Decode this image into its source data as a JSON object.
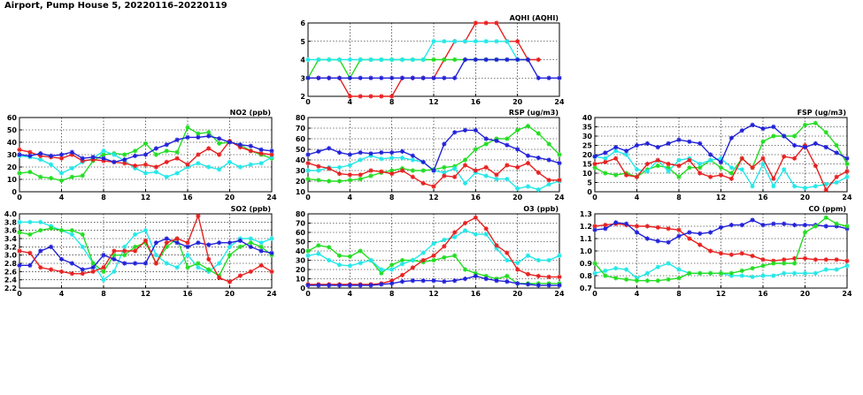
{
  "page_title": "Airport, Pump House 5, 20220116–20220119",
  "colors": {
    "red": "#e82020",
    "green": "#22dd22",
    "blue": "#2222d8",
    "cyan": "#22e8e8"
  },
  "chart_data": [
    {
      "id": "aqhi",
      "type": "line",
      "title": "AQHI (AQHI)",
      "xlim": [
        0,
        24
      ],
      "ylim": [
        2,
        6
      ],
      "xticks": [
        0,
        4,
        8,
        12,
        16,
        20,
        24
      ],
      "yticks": [
        2,
        3,
        4,
        5,
        6
      ],
      "x": [
        0,
        1,
        2,
        3,
        4,
        5,
        6,
        7,
        8,
        9,
        10,
        11,
        12,
        13,
        14,
        15,
        16,
        17,
        18,
        19,
        20,
        21,
        22,
        23,
        24
      ],
      "series": [
        {
          "color": "red",
          "values": [
            3,
            3,
            3,
            3,
            2,
            2,
            2,
            2,
            2,
            3,
            3,
            3,
            3,
            4,
            5,
            5,
            6,
            6,
            6,
            5,
            5,
            4,
            4,
            null,
            null
          ]
        },
        {
          "color": "green",
          "values": [
            3,
            4,
            4,
            4,
            3,
            4,
            4,
            4,
            4,
            4,
            4,
            4,
            4,
            4,
            4,
            4,
            4,
            4,
            4,
            4,
            4,
            4,
            null,
            null,
            null
          ]
        },
        {
          "color": "cyan",
          "values": [
            4,
            4,
            4,
            4,
            4,
            4,
            4,
            4,
            4,
            4,
            4,
            4,
            5,
            5,
            5,
            5,
            5,
            5,
            5,
            5,
            4,
            null,
            null,
            null,
            null
          ]
        },
        {
          "color": "blue",
          "values": [
            3,
            3,
            3,
            3,
            3,
            3,
            3,
            3,
            3,
            3,
            3,
            3,
            3,
            3,
            3,
            4,
            4,
            4,
            4,
            4,
            4,
            4,
            3,
            3,
            3
          ]
        }
      ]
    },
    {
      "id": "no2",
      "type": "line",
      "title": "NO2 (ppb)",
      "xlim": [
        0,
        24
      ],
      "ylim": [
        0,
        60
      ],
      "xticks": [
        0,
        4,
        8,
        12,
        16,
        20,
        24
      ],
      "yticks": [
        0,
        10,
        20,
        30,
        40,
        50,
        60
      ],
      "x": [
        0,
        1,
        2,
        3,
        4,
        5,
        6,
        7,
        8,
        9,
        10,
        11,
        12,
        13,
        14,
        15,
        16,
        17,
        18,
        19,
        20,
        21,
        22,
        23,
        24
      ],
      "series": [
        {
          "color": "green",
          "values": [
            15,
            16,
            12,
            11,
            9,
            12,
            13,
            25,
            30,
            31,
            30,
            33,
            39,
            30,
            33,
            32,
            52,
            47,
            48,
            39,
            40,
            38,
            33,
            30,
            27
          ]
        },
        {
          "color": "cyan",
          "values": [
            29,
            28,
            26,
            22,
            15,
            19,
            24,
            27,
            33,
            30,
            25,
            19,
            15,
            16,
            12,
            15,
            20,
            23,
            20,
            18,
            24,
            20,
            22,
            23,
            28
          ]
        },
        {
          "color": "red",
          "values": [
            34,
            32,
            29,
            28,
            27,
            30,
            25,
            26,
            25,
            24,
            23,
            21,
            22,
            20,
            24,
            27,
            22,
            30,
            35,
            30,
            41,
            36,
            33,
            31,
            30
          ]
        },
        {
          "color": "blue",
          "values": [
            30,
            29,
            31,
            29,
            30,
            32,
            27,
            28,
            27,
            24,
            26,
            29,
            30,
            35,
            38,
            42,
            44,
            44,
            45,
            43,
            40,
            38,
            37,
            34,
            33
          ]
        }
      ]
    },
    {
      "id": "rsp",
      "type": "line",
      "title": "RSP (ug/m3)",
      "xlim": [
        0,
        24
      ],
      "ylim": [
        10,
        80
      ],
      "xticks": [
        0,
        4,
        8,
        12,
        16,
        20,
        24
      ],
      "yticks": [
        10,
        20,
        30,
        40,
        50,
        60,
        70,
        80
      ],
      "x": [
        0,
        1,
        2,
        3,
        4,
        5,
        6,
        7,
        8,
        9,
        10,
        11,
        12,
        13,
        14,
        15,
        16,
        17,
        18,
        19,
        20,
        21,
        22,
        23,
        24
      ],
      "series": [
        {
          "color": "green",
          "values": [
            22,
            21,
            20,
            20,
            21,
            22,
            25,
            28,
            30,
            32,
            30,
            30,
            31,
            33,
            34,
            40,
            50,
            55,
            60,
            60,
            68,
            72,
            65,
            55,
            45
          ]
        },
        {
          "color": "cyan",
          "values": [
            30,
            30,
            33,
            33,
            35,
            40,
            44,
            41,
            42,
            42,
            40,
            38,
            30,
            28,
            32,
            18,
            28,
            25,
            22,
            22,
            13,
            15,
            12,
            17,
            20
          ]
        },
        {
          "color": "red",
          "values": [
            37,
            34,
            32,
            27,
            26,
            26,
            30,
            29,
            27,
            30,
            24,
            18,
            15,
            25,
            24,
            35,
            30,
            33,
            26,
            35,
            33,
            37,
            28,
            21,
            21
          ]
        },
        {
          "color": "blue",
          "values": [
            45,
            48,
            51,
            47,
            45,
            47,
            46,
            47,
            47,
            48,
            44,
            38,
            30,
            55,
            66,
            68,
            68,
            60,
            58,
            54,
            50,
            44,
            42,
            40,
            37
          ]
        }
      ]
    },
    {
      "id": "fsp",
      "type": "line",
      "title": "FSP (ug/m3)",
      "xlim": [
        0,
        24
      ],
      "ylim": [
        0,
        40
      ],
      "xticks": [
        0,
        4,
        8,
        12,
        16,
        20,
        24
      ],
      "yticks": [
        0,
        5,
        10,
        15,
        20,
        25,
        30,
        35,
        40
      ],
      "x": [
        0,
        1,
        2,
        3,
        4,
        5,
        6,
        7,
        8,
        9,
        10,
        11,
        12,
        13,
        14,
        15,
        16,
        17,
        18,
        19,
        20,
        21,
        22,
        23,
        24
      ],
      "series": [
        {
          "color": "green",
          "values": [
            13,
            10,
            9,
            10,
            8,
            12,
            14,
            13,
            8,
            13,
            13,
            17,
            13,
            10,
            18,
            13,
            27,
            30,
            30,
            30,
            36,
            37,
            32,
            25,
            15
          ]
        },
        {
          "color": "cyan",
          "values": [
            19,
            18,
            22,
            20,
            12,
            11,
            17,
            11,
            17,
            18,
            15,
            17,
            18,
            13,
            12,
            3,
            15,
            3,
            12,
            3,
            2,
            3,
            4,
            5,
            8
          ]
        },
        {
          "color": "red",
          "values": [
            15,
            16,
            18,
            9,
            8,
            15,
            17,
            15,
            14,
            17,
            10,
            8,
            9,
            7,
            18,
            13,
            18,
            7,
            19,
            18,
            25,
            14,
            1,
            8,
            11
          ]
        },
        {
          "color": "blue",
          "values": [
            19,
            21,
            24,
            22,
            25,
            26,
            24,
            26,
            28,
            27,
            26,
            20,
            16,
            29,
            33,
            36,
            34,
            35,
            30,
            25,
            24,
            26,
            24,
            21,
            18
          ]
        }
      ]
    },
    {
      "id": "so2",
      "type": "line",
      "title": "SO2 (ppb)",
      "xlim": [
        0,
        24
      ],
      "ylim": [
        2.2,
        4.0
      ],
      "xticks": [
        0,
        4,
        8,
        12,
        16,
        20,
        24
      ],
      "yticks": [
        2.2,
        2.4,
        2.6,
        2.8,
        3.0,
        3.2,
        3.4,
        3.6,
        3.8,
        4.0
      ],
      "x": [
        0,
        1,
        2,
        3,
        4,
        5,
        6,
        7,
        8,
        9,
        10,
        11,
        12,
        13,
        14,
        15,
        16,
        17,
        18,
        19,
        20,
        21,
        22,
        23,
        24
      ],
      "series": [
        {
          "color": "cyan",
          "values": [
            3.8,
            3.8,
            3.8,
            3.7,
            3.6,
            3.5,
            3.2,
            2.8,
            2.4,
            2.6,
            3.2,
            3.5,
            3.6,
            3.0,
            2.8,
            2.7,
            3.0,
            2.7,
            2.6,
            2.8,
            3.2,
            3.4,
            3.4,
            3.3,
            3.4
          ]
        },
        {
          "color": "green",
          "values": [
            3.55,
            3.5,
            3.6,
            3.65,
            3.6,
            3.6,
            3.5,
            2.8,
            2.6,
            3.0,
            3.0,
            3.2,
            3.3,
            2.8,
            3.2,
            3.4,
            2.7,
            2.8,
            2.65,
            2.5,
            3.0,
            3.2,
            3.3,
            3.2,
            3.0
          ]
        },
        {
          "color": "blue",
          "values": [
            2.75,
            2.75,
            3.1,
            3.2,
            2.9,
            2.8,
            2.65,
            2.7,
            3.0,
            2.9,
            2.8,
            2.8,
            2.8,
            3.3,
            3.4,
            3.3,
            3.2,
            3.3,
            3.25,
            3.3,
            3.3,
            3.35,
            3.2,
            3.1,
            3.05
          ]
        },
        {
          "color": "red",
          "values": [
            3.1,
            3.05,
            2.7,
            2.65,
            2.6,
            2.55,
            2.55,
            2.6,
            2.7,
            3.1,
            3.1,
            3.1,
            3.35,
            2.8,
            3.3,
            3.4,
            3.3,
            3.95,
            2.9,
            2.45,
            2.35,
            2.5,
            2.6,
            2.75,
            2.6
          ]
        }
      ]
    },
    {
      "id": "o3",
      "type": "line",
      "title": "O3 (ppb)",
      "xlim": [
        0,
        24
      ],
      "ylim": [
        0,
        80
      ],
      "xticks": [
        0,
        4,
        8,
        12,
        16,
        20,
        24
      ],
      "yticks": [
        0,
        10,
        20,
        30,
        40,
        50,
        60,
        70,
        80
      ],
      "x": [
        0,
        1,
        2,
        3,
        4,
        5,
        6,
        7,
        8,
        9,
        10,
        11,
        12,
        13,
        14,
        15,
        16,
        17,
        18,
        19,
        20,
        21,
        22,
        23,
        24
      ],
      "series": [
        {
          "color": "green",
          "values": [
            40,
            46,
            44,
            35,
            34,
            40,
            30,
            16,
            25,
            30,
            30,
            28,
            30,
            33,
            35,
            20,
            16,
            13,
            10,
            13,
            5,
            5,
            5,
            5,
            5
          ]
        },
        {
          "color": "cyan",
          "values": [
            35,
            37,
            30,
            25,
            24,
            27,
            30,
            20,
            20,
            26,
            30,
            38,
            48,
            52,
            55,
            62,
            58,
            58,
            43,
            30,
            27,
            35,
            30,
            30,
            35
          ]
        },
        {
          "color": "red",
          "values": [
            4,
            4,
            4,
            4,
            4,
            4,
            4,
            5,
            8,
            14,
            22,
            30,
            35,
            45,
            60,
            70,
            76,
            64,
            46,
            38,
            20,
            15,
            13,
            12,
            12
          ]
        },
        {
          "color": "blue",
          "values": [
            3,
            3,
            3,
            3,
            3,
            3,
            3,
            4,
            5,
            7,
            8,
            8,
            8,
            7,
            8,
            10,
            13,
            10,
            8,
            7,
            5,
            4,
            3,
            3,
            3
          ]
        }
      ]
    },
    {
      "id": "co",
      "type": "line",
      "title": "CO (ppm)",
      "xlim": [
        0,
        24
      ],
      "ylim": [
        0.7,
        1.3
      ],
      "xticks": [
        0,
        4,
        8,
        12,
        16,
        20,
        24
      ],
      "yticks": [
        0.7,
        0.8,
        0.9,
        1.0,
        1.1,
        1.2,
        1.3
      ],
      "x": [
        0,
        1,
        2,
        3,
        4,
        5,
        6,
        7,
        8,
        9,
        10,
        11,
        12,
        13,
        14,
        15,
        16,
        17,
        18,
        19,
        20,
        21,
        22,
        23,
        24
      ],
      "series": [
        {
          "color": "red",
          "values": [
            1.2,
            1.21,
            1.22,
            1.21,
            1.2,
            1.2,
            1.19,
            1.18,
            1.17,
            1.1,
            1.05,
            1.0,
            0.98,
            0.97,
            0.98,
            0.96,
            0.93,
            0.92,
            0.93,
            0.94,
            0.94,
            0.93,
            0.93,
            0.93,
            0.92
          ]
        },
        {
          "color": "blue",
          "values": [
            1.17,
            1.18,
            1.23,
            1.22,
            1.15,
            1.1,
            1.08,
            1.07,
            1.12,
            1.15,
            1.14,
            1.15,
            1.19,
            1.21,
            1.21,
            1.25,
            1.21,
            1.22,
            1.22,
            1.21,
            1.21,
            1.21,
            1.2,
            1.2,
            1.18
          ]
        },
        {
          "color": "cyan",
          "values": [
            0.82,
            0.84,
            0.86,
            0.85,
            0.78,
            0.82,
            0.87,
            0.9,
            0.85,
            0.82,
            0.82,
            0.82,
            0.82,
            0.8,
            0.8,
            0.79,
            0.8,
            0.8,
            0.82,
            0.82,
            0.82,
            0.82,
            0.85,
            0.85,
            0.88
          ]
        },
        {
          "color": "green",
          "values": [
            0.9,
            0.8,
            0.78,
            0.77,
            0.76,
            0.76,
            0.76,
            0.77,
            0.78,
            0.82,
            0.82,
            0.82,
            0.82,
            0.82,
            0.84,
            0.86,
            0.88,
            0.9,
            0.9,
            0.9,
            1.15,
            1.2,
            1.27,
            1.22,
            1.2
          ]
        }
      ]
    }
  ]
}
